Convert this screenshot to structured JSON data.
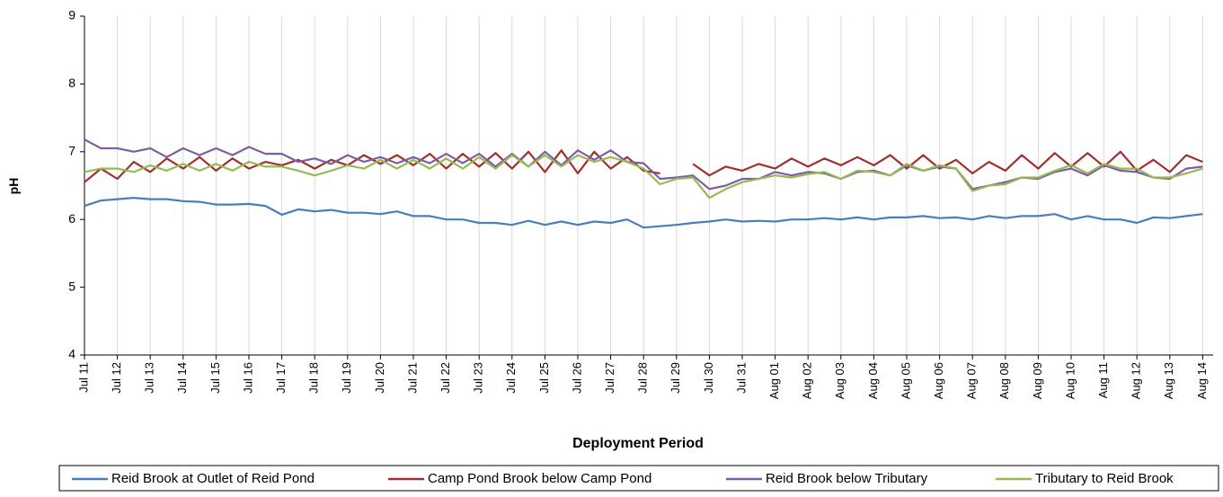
{
  "chart_data": {
    "type": "line",
    "y_label": "pH",
    "x_label": "Deployment Period",
    "categories": [
      "Jul 11",
      null,
      "Jul 12",
      null,
      "Jul 13",
      null,
      "Jul 14",
      null,
      "Jul 15",
      null,
      "Jul 16",
      null,
      "Jul 17",
      null,
      "Jul 18",
      null,
      "Jul 19",
      null,
      "Jul 20",
      null,
      "Jul 21",
      null,
      "Jul 22",
      null,
      "Jul 23",
      null,
      "Jul 24",
      null,
      "Jul 25",
      null,
      "Jul 26",
      null,
      "Jul 27",
      null,
      "Jul 28",
      null,
      "Jul 29",
      null,
      "Jul 30",
      null,
      "Jul 31",
      null,
      "Aug 01",
      null,
      "Aug 02",
      null,
      "Aug 03",
      null,
      "Aug 04",
      null,
      "Aug 05",
      null,
      "Aug 06",
      null,
      "Aug 07",
      null,
      "Aug 08",
      null,
      "Aug 09",
      null,
      "Aug 10",
      null,
      "Aug 11",
      null,
      "Aug 12",
      null,
      "Aug 13",
      null,
      "Aug 14"
    ],
    "series": [
      {
        "name": "Reid Brook at Outlet of Reid Pond",
        "color": "#4a7ebb",
        "values": [
          6.2,
          6.28,
          6.3,
          6.32,
          6.3,
          6.3,
          6.27,
          6.26,
          6.22,
          6.22,
          6.23,
          6.2,
          6.07,
          6.15,
          6.12,
          6.14,
          6.1,
          6.1,
          6.08,
          6.12,
          6.05,
          6.05,
          6.0,
          6.0,
          5.95,
          5.95,
          5.92,
          5.98,
          5.92,
          5.97,
          5.92,
          5.97,
          5.95,
          6.0,
          5.88,
          5.9,
          5.92,
          5.95,
          5.97,
          6.0,
          5.97,
          5.98,
          5.97,
          6.0,
          6.0,
          6.02,
          6.0,
          6.03,
          6.0,
          6.03,
          6.03,
          6.05,
          6.02,
          6.03,
          6.0,
          6.05,
          6.02,
          6.05,
          6.05,
          6.08,
          6.0,
          6.05,
          6.0,
          6.0,
          5.95,
          6.03,
          6.02,
          6.05,
          6.08
        ]
      },
      {
        "name": "Camp Pond Brook below Camp Pond",
        "color": "#a0302d",
        "values": [
          6.55,
          6.75,
          6.6,
          6.85,
          6.7,
          6.9,
          6.75,
          6.92,
          6.72,
          6.9,
          6.75,
          6.85,
          6.8,
          6.88,
          6.75,
          6.88,
          6.8,
          6.95,
          6.82,
          6.95,
          6.8,
          6.97,
          6.75,
          6.97,
          6.78,
          6.98,
          6.75,
          7.0,
          6.7,
          7.02,
          6.68,
          7.0,
          6.75,
          6.92,
          6.72,
          6.68,
          null,
          6.82,
          6.65,
          6.78,
          6.72,
          6.82,
          6.75,
          6.9,
          6.78,
          6.9,
          6.8,
          6.92,
          6.8,
          6.95,
          6.75,
          6.95,
          6.75,
          6.88,
          6.68,
          6.85,
          6.72,
          6.95,
          6.75,
          6.98,
          6.78,
          6.98,
          6.78,
          7.0,
          6.72,
          6.88,
          6.7,
          6.95,
          6.85
        ]
      },
      {
        "name": "Reid Brook below Tributary",
        "color": "#7d5fa0",
        "values": [
          7.18,
          7.05,
          7.05,
          7.0,
          7.05,
          6.92,
          7.05,
          6.95,
          7.05,
          6.95,
          7.07,
          6.97,
          6.97,
          6.85,
          6.9,
          6.82,
          6.95,
          6.85,
          6.92,
          6.83,
          6.92,
          6.83,
          6.97,
          6.83,
          6.97,
          6.78,
          6.97,
          6.78,
          7.0,
          6.8,
          7.02,
          6.88,
          7.02,
          6.85,
          6.83,
          6.6,
          6.62,
          6.65,
          6.45,
          6.5,
          6.6,
          6.6,
          6.7,
          6.65,
          6.7,
          6.68,
          6.6,
          6.7,
          6.72,
          6.65,
          6.8,
          6.72,
          6.78,
          6.75,
          6.45,
          6.5,
          6.55,
          6.62,
          6.6,
          6.7,
          6.75,
          6.65,
          6.8,
          6.72,
          6.7,
          6.62,
          6.6,
          6.75,
          6.78
        ]
      },
      {
        "name": "Tributary to Reid Brook",
        "color": "#98b954",
        "values": [
          6.7,
          6.75,
          6.75,
          6.7,
          6.8,
          6.72,
          6.82,
          6.72,
          6.82,
          6.72,
          6.85,
          6.78,
          6.78,
          6.72,
          6.65,
          6.72,
          6.8,
          6.75,
          6.88,
          6.75,
          6.88,
          6.75,
          6.9,
          6.75,
          6.92,
          6.75,
          6.95,
          6.78,
          6.95,
          6.78,
          6.95,
          6.85,
          6.92,
          6.85,
          6.75,
          6.52,
          6.6,
          6.62,
          6.32,
          6.45,
          6.55,
          6.6,
          6.65,
          6.62,
          6.67,
          6.7,
          6.6,
          6.72,
          6.7,
          6.65,
          6.82,
          6.72,
          6.8,
          6.75,
          6.42,
          6.5,
          6.52,
          6.62,
          6.62,
          6.72,
          6.8,
          6.68,
          6.82,
          6.75,
          6.75,
          6.62,
          6.62,
          6.68,
          6.75
        ]
      }
    ],
    "ylim": [
      4,
      9
    ],
    "yticks": [
      4,
      5,
      6,
      7,
      8,
      9
    ],
    "x_grid": true,
    "legend": "bottom"
  }
}
